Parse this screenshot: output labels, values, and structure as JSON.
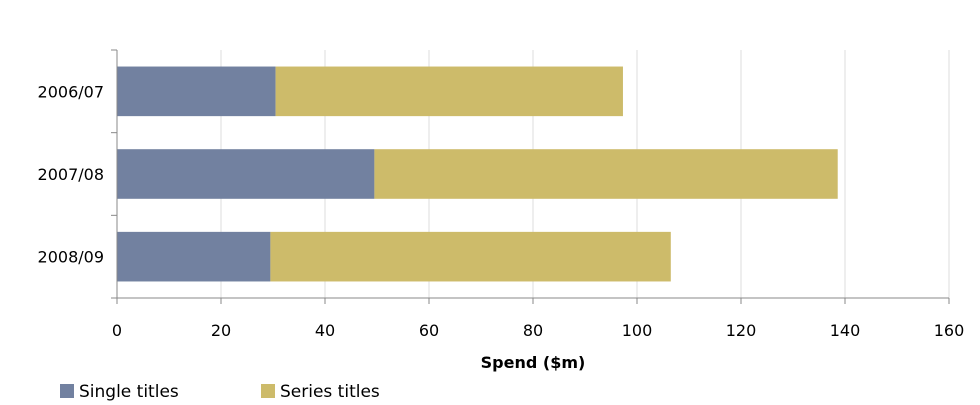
{
  "chart_data": {
    "type": "bar",
    "orientation": "horizontal",
    "stacked": true,
    "categories": [
      "2006/07",
      "2007/08",
      "2008/09"
    ],
    "series": [
      {
        "name": "Single titles",
        "values": [
          30.5,
          49.5,
          29.5
        ],
        "color": "#7281a0"
      },
      {
        "name": "Series titles",
        "values": [
          66.8,
          89.1,
          77.0
        ],
        "color": "#cdbb6a"
      }
    ],
    "xlabel": "Spend ($m)",
    "ylabel": "",
    "xlim": [
      0,
      160
    ],
    "xticks": [
      "0",
      "20",
      "40",
      "60",
      "80",
      "100",
      "120",
      "140",
      "160"
    ],
    "grid": "vertical",
    "legend_position": "bottom-left"
  }
}
